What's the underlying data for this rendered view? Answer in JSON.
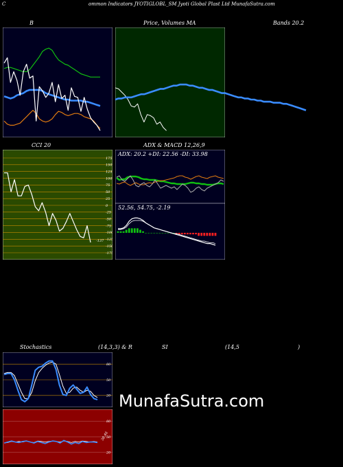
{
  "header": {
    "c": "C",
    "title": "ommon  Indicators JYOTIGLOBL_SM Jyoti   Global Plast Ltd MunafaSutra.com"
  },
  "watermark": "MunafaSutra.com",
  "colors": {
    "background": "#000000",
    "panel_dark": "#000020",
    "panel_green": "#002800",
    "panel_olive": "#2a4a00",
    "panel_red": "#8c0000",
    "blue": "#3a8cff",
    "green": "#10c010",
    "orange": "#e07a10",
    "white": "#ffffff"
  },
  "chart_data": [
    {
      "type": "line",
      "name": "bollinger",
      "title": "B",
      "series": [
        {
          "name": "",
          "color": "#10c010",
          "values": [
            63,
            64,
            64,
            63,
            62,
            61,
            60,
            60,
            62,
            66,
            70,
            74,
            79,
            81,
            82,
            80,
            75,
            71,
            69,
            67,
            66,
            64,
            62,
            60,
            58,
            57,
            56,
            55,
            55,
            55,
            55
          ]
        },
        {
          "name": "",
          "color": "#3a8cff",
          "values": [
            37,
            36,
            35,
            36,
            38,
            39,
            40,
            42,
            43,
            43,
            43,
            43,
            42,
            40,
            39,
            38,
            37,
            36,
            35,
            34,
            34,
            33,
            33,
            33,
            33,
            32,
            32,
            31,
            30,
            29,
            28
          ]
        },
        {
          "name": "",
          "color": "#e07a10",
          "values": [
            14,
            11,
            10,
            10,
            11,
            12,
            15,
            18,
            21,
            24,
            21,
            16,
            14,
            13,
            14,
            16,
            20,
            23,
            22,
            20,
            19,
            20,
            21,
            21,
            20,
            18,
            17,
            16,
            14,
            10,
            7
          ]
        },
        {
          "name": "",
          "color": "#ffffff",
          "values": [
            68,
            73,
            50,
            60,
            52,
            38,
            60,
            67,
            54,
            56,
            14,
            46,
            42,
            36,
            40,
            50,
            32,
            48,
            35,
            38,
            24,
            45,
            37,
            36,
            23,
            36,
            25,
            17,
            13,
            10,
            5
          ]
        }
      ]
    },
    {
      "type": "line",
      "name": "price_ma",
      "title": "Price,  Volumes   MA",
      "series": [
        {
          "name": "",
          "color": "#ffffff",
          "values": [
            45,
            44,
            41,
            38,
            34,
            28,
            27,
            30,
            20,
            13,
            20,
            19,
            17,
            11,
            13,
            8,
            5,
            null,
            null,
            null,
            null,
            null,
            null,
            null,
            null,
            null,
            null,
            null,
            null,
            null,
            null,
            null,
            null,
            null,
            null,
            null,
            null,
            null,
            null,
            null,
            null,
            null,
            null,
            null,
            null,
            null,
            null,
            null,
            null,
            null,
            null,
            null,
            null,
            null,
            null,
            null,
            null,
            null,
            null,
            null
          ]
        },
        {
          "name": "",
          "color": "#3a8cff",
          "values": [
            34,
            35,
            35,
            36,
            36,
            36,
            37,
            38,
            39,
            39,
            40,
            41,
            42,
            43,
            44,
            44,
            45,
            46,
            47,
            47,
            48,
            48,
            48,
            47,
            47,
            46,
            45,
            45,
            44,
            43,
            43,
            42,
            41,
            40,
            40,
            39,
            38,
            37,
            36,
            36,
            35,
            35,
            34,
            34,
            33,
            33,
            32,
            32,
            32,
            31,
            31,
            31,
            30,
            30,
            29,
            28,
            27,
            26,
            25,
            24
          ]
        }
      ]
    },
    {
      "type": "line",
      "name": "bollinger_bands_label",
      "title": "Bands 20.2",
      "series": []
    },
    {
      "type": "line",
      "name": "cci",
      "title": "CCI 20",
      "yticks": [
        "175",
        "150",
        "125",
        "100",
        "75",
        "50",
        "25",
        "0",
        "-25",
        "-50",
        "-75",
        "-100",
        "-125",
        "-150",
        "-175"
      ],
      "ylim": [
        -175,
        175
      ],
      "last_label": "-137",
      "series": [
        {
          "name": "",
          "color": "#ffffff",
          "values": [
            120,
            120,
            50,
            95,
            35,
            35,
            70,
            75,
            40,
            -5,
            -20,
            10,
            -25,
            -75,
            -30,
            -55,
            -95,
            -85,
            -60,
            -30,
            -60,
            -90,
            -115,
            -120,
            -75,
            -137
          ]
        }
      ]
    },
    {
      "type": "line",
      "name": "adx_macd",
      "title": "ADX  & MACD 12,26,9",
      "adx_label": "ADX: 20.2  +DI: 22.56  -DI: 33.98",
      "macd_label": "52.56,  54.75,  -2.19",
      "series": [
        {
          "name": "",
          "color": "#10c010",
          "values": [
            33,
            30,
            31,
            31,
            34,
            35,
            35,
            35,
            34,
            32,
            31,
            31,
            30,
            30,
            30,
            29,
            28,
            28,
            27,
            26,
            25,
            25,
            24,
            24,
            24,
            24,
            25,
            26,
            26,
            25,
            25,
            24,
            24,
            23,
            23,
            23,
            24,
            25,
            25,
            24
          ]
        },
        {
          "name": "",
          "color": "#e07a10",
          "values": [
            25,
            24,
            26,
            27,
            24,
            22,
            24,
            26,
            24,
            23,
            23,
            25,
            26,
            25,
            27,
            28,
            29,
            29,
            30,
            31,
            32,
            33,
            35,
            36,
            36,
            34,
            33,
            31,
            33,
            35,
            36,
            34,
            33,
            32,
            34,
            35,
            36,
            34,
            33,
            32
          ]
        },
        {
          "name": "",
          "color": "#aaaaaa",
          "values": [
            34,
            36,
            30,
            28,
            32,
            36,
            30,
            22,
            20,
            24,
            26,
            22,
            20,
            24,
            30,
            24,
            18,
            20,
            22,
            20,
            18,
            20,
            16,
            20,
            24,
            22,
            18,
            12,
            14,
            18,
            20,
            16,
            14,
            18,
            20,
            22,
            24,
            26,
            30,
            28
          ]
        },
        {
          "name": "",
          "color": "#ffffff",
          "values": [
            5,
            5,
            6,
            9,
            14,
            17,
            18,
            18,
            17,
            15,
            12,
            10,
            8,
            6,
            5,
            4,
            3,
            2,
            1,
            0,
            -1,
            -2,
            -3,
            -4,
            -5,
            -6,
            -7,
            -8,
            -9,
            -10,
            -11,
            -12,
            -13,
            -13,
            -14,
            -15
          ]
        },
        {
          "name": "",
          "color": "#ffffff",
          "values": [
            4,
            4,
            5,
            7,
            11,
            14,
            15,
            15,
            15,
            14,
            12,
            10,
            8,
            6,
            5,
            4,
            3,
            2,
            1,
            0,
            -1,
            -1,
            -2,
            -3,
            -4,
            -5,
            -6,
            -7,
            -8,
            -9,
            -10,
            -10,
            -11,
            -12,
            -12,
            -13
          ]
        }
      ],
      "histogram": [
        1,
        1,
        1,
        2,
        3,
        3,
        3,
        3,
        2,
        1,
        0,
        0,
        0,
        0,
        0,
        0,
        0,
        0,
        0,
        0,
        0,
        -1,
        -1,
        -1,
        -1,
        -1,
        -1,
        -1,
        -1,
        -2,
        -2,
        -2,
        -2,
        -2,
        -2,
        -2
      ]
    },
    {
      "type": "line",
      "name": "stochastics",
      "title": "Stochastics",
      "params": "(14,3,3) & R",
      "yticks": [
        "80",
        "50",
        "20"
      ],
      "ylim": [
        0,
        100
      ],
      "series": [
        {
          "name": "",
          "color": "#3a8cff",
          "values": [
            60,
            62,
            62,
            50,
            30,
            12,
            8,
            14,
            40,
            68,
            74,
            76,
            82,
            86,
            86,
            70,
            40,
            22,
            20,
            34,
            40,
            32,
            24,
            26,
            36,
            22,
            14,
            12
          ]
        },
        {
          "name": "",
          "color": "#ffffff",
          "values": [
            62,
            64,
            64,
            58,
            42,
            26,
            14,
            14,
            26,
            48,
            64,
            72,
            78,
            82,
            84,
            80,
            60,
            38,
            24,
            26,
            34,
            36,
            30,
            26,
            30,
            28,
            20,
            16
          ]
        }
      ]
    },
    {
      "type": "line",
      "name": "rsi",
      "title": "SI",
      "params": "(14,5",
      "paren": ")",
      "yticks": [
        "80",
        "50",
        "20"
      ],
      "ylim": [
        0,
        100
      ],
      "last_label": "38.46",
      "series": [
        {
          "name": "",
          "color": "#ffffff",
          "values": [
            38,
            39,
            41,
            40,
            41,
            40,
            42,
            40,
            39,
            42,
            41,
            40,
            41,
            42,
            41,
            40,
            42,
            41,
            39,
            41,
            40,
            42,
            41,
            40,
            41,
            40
          ]
        },
        {
          "name": "",
          "color": "#3a8cff",
          "values": [
            38,
            40,
            42,
            40,
            39,
            41,
            42,
            40,
            38,
            41,
            39,
            37,
            40,
            42,
            41,
            38,
            43,
            40,
            36,
            39,
            37,
            41,
            39,
            40,
            40,
            39
          ]
        }
      ]
    }
  ]
}
